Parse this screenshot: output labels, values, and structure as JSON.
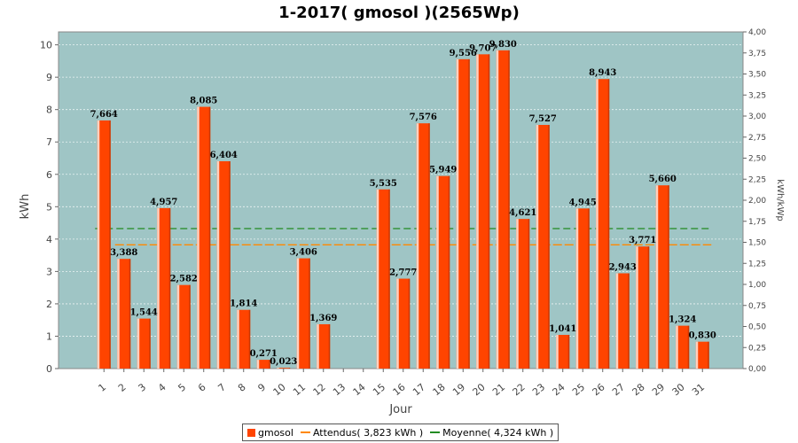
{
  "title": "1-2017( gmosol )(2565Wp)",
  "chart_data": {
    "type": "bar",
    "title": "1-2017( gmosol )(2565Wp)",
    "xlabel": "Jour",
    "ylabel": "kWh",
    "y2label": "kWh/kWp",
    "ylim": [
      0,
      10.4
    ],
    "y2lim": [
      0,
      4.0
    ],
    "yticks": [
      0,
      1,
      2,
      3,
      4,
      5,
      6,
      7,
      8,
      9,
      10
    ],
    "y2ticks": [
      "0,00",
      "0,25",
      "0,50",
      "0,75",
      "1,00",
      "1,25",
      "1,50",
      "1,75",
      "2,00",
      "2,25",
      "2,50",
      "2,75",
      "3,00",
      "3,25",
      "3,50",
      "3,75",
      "4,00"
    ],
    "grid": true,
    "legend_position": "bottom",
    "categories": [
      "1",
      "2",
      "3",
      "4",
      "5",
      "6",
      "7",
      "8",
      "9",
      "10",
      "11",
      "12",
      "13",
      "14",
      "15",
      "16",
      "17",
      "18",
      "19",
      "20",
      "21",
      "22",
      "23",
      "24",
      "25",
      "26",
      "27",
      "28",
      "29",
      "30",
      "31"
    ],
    "series": [
      {
        "name": "gmosol",
        "color": "#ff4400",
        "values": [
          7.664,
          3.388,
          1.544,
          4.957,
          2.582,
          8.085,
          6.404,
          1.814,
          0.271,
          0.023,
          3.406,
          1.369,
          0,
          0,
          5.535,
          2.777,
          7.576,
          5.949,
          9.556,
          9.707,
          9.83,
          4.621,
          7.527,
          1.041,
          4.945,
          8.943,
          2.943,
          3.771,
          5.66,
          1.324,
          0.83
        ],
        "labels": [
          "7,664",
          "3,388",
          "1,544",
          "4,957",
          "2,582",
          "8,085",
          "6,404",
          "1,814",
          "0,271",
          "0,023",
          "3,406",
          "1,369",
          "",
          "",
          "5,535",
          "2,777",
          "7,576",
          "5,949",
          "9,556",
          "9,707",
          "9,830",
          "4,621",
          "7,527",
          "1,041",
          "4,945",
          "8,943",
          "2,943",
          "3,771",
          "5,660",
          "1,324",
          "0,830"
        ]
      }
    ],
    "reference_lines": [
      {
        "name": "Attendus",
        "value": 3.823,
        "color": "#ff8800",
        "style": "dashed",
        "from_day": 2
      },
      {
        "name": "Moyenne",
        "value": 4.324,
        "color": "#228b22",
        "style": "dashed",
        "from_day": 1
      }
    ],
    "plot_background": "#9fc5c5"
  },
  "legend": {
    "items": [
      {
        "label": "gmosol",
        "color": "#ff4400",
        "kind": "swatch"
      },
      {
        "label": "Attendus( 3,823 kWh )",
        "color": "#ff8800",
        "kind": "line"
      },
      {
        "label": "Moyenne( 4,324 kWh )",
        "color": "#228b22",
        "kind": "line"
      }
    ]
  }
}
